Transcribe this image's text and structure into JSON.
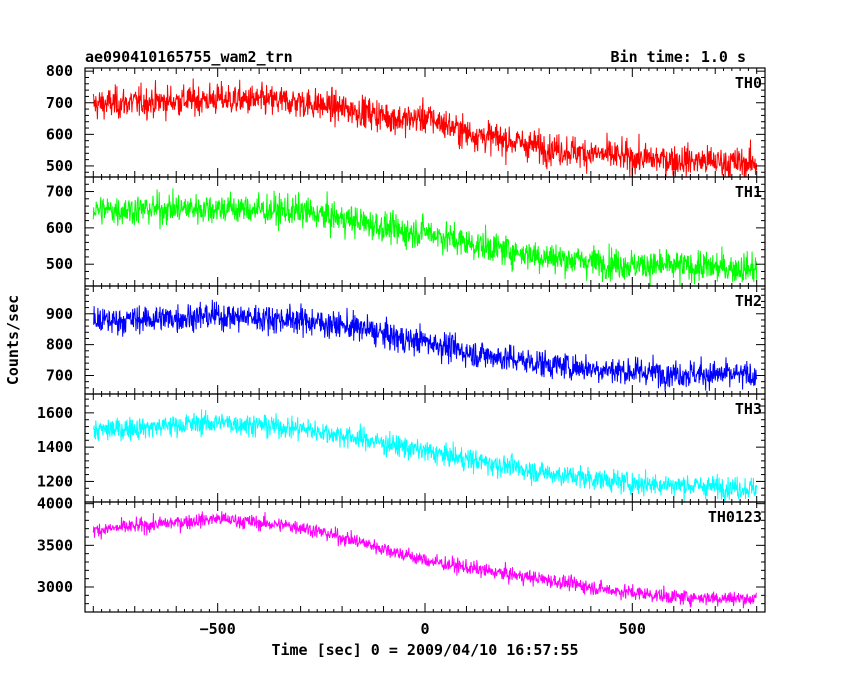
{
  "header": {
    "title": "ae090410165755_wam2_trn",
    "bin_time": "Bin time: 1.0 s"
  },
  "axes": {
    "xlabel": "Time [sec] 0 = 2009/04/10 16:57:55",
    "ylabel": "Counts/sec"
  },
  "chart_data": {
    "type": "line",
    "xlim": [
      -820,
      820
    ],
    "x_ticks": [
      -500,
      0,
      500
    ],
    "x_tick_labels": [
      "−500",
      "0",
      "500"
    ],
    "x_range": [
      -800,
      800
    ],
    "grid": false,
    "panels": [
      {
        "name": "TH0",
        "color": "#ff0000",
        "ylim": [
          465,
          810
        ],
        "y_ticks": [
          500,
          600,
          700,
          800
        ],
        "y_tick_labels": [
          "500",
          "600",
          "700",
          "800"
        ],
        "trend": [
          [
            -800,
            695
          ],
          [
            -500,
            712
          ],
          [
            -300,
            702
          ],
          [
            -150,
            672
          ],
          [
            -50,
            645
          ],
          [
            0,
            655
          ],
          [
            100,
            605
          ],
          [
            300,
            555
          ],
          [
            500,
            525
          ],
          [
            780,
            508
          ]
        ],
        "noise": 42
      },
      {
        "name": "TH1",
        "color": "#00ff00",
        "ylim": [
          440,
          740
        ],
        "y_ticks": [
          500,
          600,
          700
        ],
        "y_tick_labels": [
          "500",
          "600",
          "700"
        ],
        "trend": [
          [
            -800,
            648
          ],
          [
            -500,
            655
          ],
          [
            -300,
            645
          ],
          [
            -150,
            615
          ],
          [
            -50,
            588
          ],
          [
            0,
            590
          ],
          [
            100,
            558
          ],
          [
            300,
            518
          ],
          [
            500,
            498
          ],
          [
            780,
            488
          ]
        ],
        "noise": 36
      },
      {
        "name": "TH2",
        "color": "#0000ff",
        "ylim": [
          640,
          990
        ],
        "y_ticks": [
          700,
          800,
          900
        ],
        "y_tick_labels": [
          "700",
          "800",
          "900"
        ],
        "trend": [
          [
            -800,
            875
          ],
          [
            -500,
            893
          ],
          [
            -300,
            880
          ],
          [
            -150,
            852
          ],
          [
            -50,
            815
          ],
          [
            0,
            812
          ],
          [
            100,
            775
          ],
          [
            300,
            735
          ],
          [
            500,
            712
          ],
          [
            780,
            700
          ]
        ],
        "noise": 38
      },
      {
        "name": "TH3",
        "color": "#00ffff",
        "ylim": [
          1080,
          1710
        ],
        "y_ticks": [
          1200,
          1400,
          1600
        ],
        "y_tick_labels": [
          "1200",
          "1400",
          "1600"
        ],
        "trend": [
          [
            -800,
            1495
          ],
          [
            -500,
            1545
          ],
          [
            -300,
            1510
          ],
          [
            -150,
            1448
          ],
          [
            0,
            1375
          ],
          [
            100,
            1330
          ],
          [
            300,
            1245
          ],
          [
            500,
            1190
          ],
          [
            780,
            1160
          ]
        ],
        "noise": 55
      },
      {
        "name": "TH0123",
        "color": "#ff00ff",
        "ylim": [
          2700,
          4020
        ],
        "y_ticks": [
          3000,
          3500,
          4000
        ],
        "y_tick_labels": [
          "3000",
          "3500",
          "4000"
        ],
        "trend": [
          [
            -800,
            3680
          ],
          [
            -500,
            3820
          ],
          [
            -300,
            3720
          ],
          [
            -150,
            3530
          ],
          [
            0,
            3320
          ],
          [
            150,
            3190
          ],
          [
            300,
            3080
          ],
          [
            450,
            2960
          ],
          [
            600,
            2880
          ],
          [
            780,
            2860
          ]
        ],
        "noise": 75
      }
    ]
  }
}
